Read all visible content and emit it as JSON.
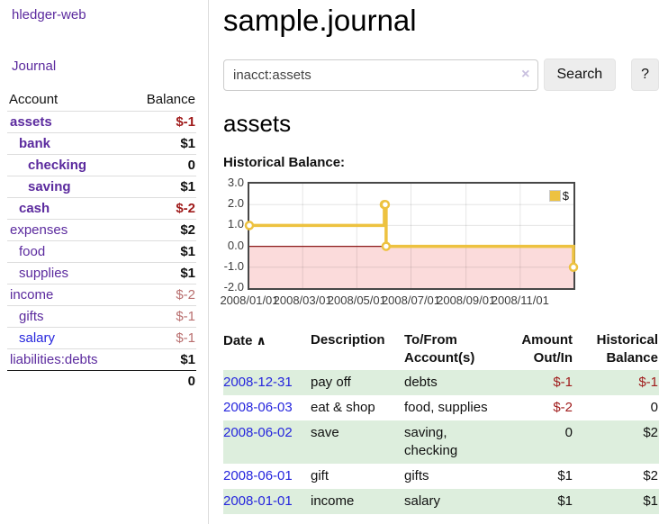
{
  "colors": {
    "link_purple": "#5b2a9e",
    "link_blue": "#2626dd",
    "negative": "#a01c1c",
    "negative_weak": "#b96f6f",
    "row_stripe_green": "#ddeedd",
    "chart_line_yellow": "#edc240",
    "chart_negative_fill": "#fbdbdb",
    "chart_zero_line": "#8b1a1a"
  },
  "sidebar": {
    "app_title": "hledger-web",
    "journal_link": "Journal",
    "accounts": {
      "account_header": "Account",
      "balance_header": "Balance",
      "rows": [
        {
          "name": "assets",
          "level": 0,
          "emph": true,
          "balance": "$-1",
          "negative": true,
          "weak": false
        },
        {
          "name": "bank",
          "level": 1,
          "emph": true,
          "balance": "$1",
          "negative": false,
          "weak": false
        },
        {
          "name": "checking",
          "level": 2,
          "emph": true,
          "balance": "0",
          "negative": false,
          "weak": false
        },
        {
          "name": "saving",
          "level": 2,
          "emph": true,
          "balance": "$1",
          "negative": false,
          "weak": false
        },
        {
          "name": "cash",
          "level": 1,
          "emph": true,
          "balance": "$-2",
          "negative": true,
          "weak": false
        },
        {
          "name": "expenses",
          "level": 0,
          "emph": false,
          "balance": "$2",
          "negative": false,
          "weak": false
        },
        {
          "name": "food",
          "level": 1,
          "emph": false,
          "balance": "$1",
          "negative": false,
          "weak": false
        },
        {
          "name": "supplies",
          "level": 1,
          "emph": false,
          "balance": "$1",
          "negative": false,
          "weak": false
        },
        {
          "name": "income",
          "level": 0,
          "emph": false,
          "balance": "$-2",
          "negative": true,
          "weak": true
        },
        {
          "name": "gifts",
          "level": 1,
          "emph": false,
          "balance": "$-1",
          "negative": true,
          "weak": true
        },
        {
          "name": "salary",
          "level": 1,
          "emph": false,
          "balance": "$-1",
          "negative": true,
          "weak": true,
          "unvisited": true
        },
        {
          "name": "liabilities:debts",
          "level": 0,
          "emph": false,
          "balance": "$1",
          "negative": false,
          "weak": false
        }
      ],
      "total": "0"
    }
  },
  "main": {
    "title": "sample.journal",
    "search": {
      "value": "inacct:assets",
      "clear_icon": "×",
      "search_button": "Search",
      "help_button": "?"
    },
    "account_heading": "assets",
    "chart_title": "Historical Balance:"
  },
  "chart_data": {
    "type": "line",
    "step": true,
    "title": "Historical Balance",
    "xlabel": "",
    "ylabel": "",
    "series": [
      {
        "name": "$",
        "color": "#edc240",
        "points": [
          [
            "2008-01-01",
            1
          ],
          [
            "2008-06-01",
            2
          ],
          [
            "2008-06-02",
            2
          ],
          [
            "2008-06-03",
            0
          ],
          [
            "2008-12-31",
            -1
          ]
        ]
      }
    ],
    "x_ticks": [
      "2008/01/01",
      "2008/03/01",
      "2008/05/01",
      "2008/07/01",
      "2008/09/01",
      "2008/11/01"
    ],
    "y_ticks": [
      "3.0",
      "2.0",
      "1.0",
      "0.0",
      "-1.0",
      "-2.0"
    ],
    "xlim": [
      "2008-01-01",
      "2008-12-31"
    ],
    "ylim": [
      -2,
      3
    ],
    "grid": true,
    "legend_position": "top-right",
    "negative_region_fill": "#fbdbdb"
  },
  "register_table": {
    "headers": {
      "date": "Date",
      "sort_icon": "∧",
      "description": "Description",
      "accounts": "To/From Account(s)",
      "amount": "Amount Out/In",
      "balance": "Historical Balance"
    },
    "rows": [
      {
        "date": "2008-12-31",
        "description": "pay off",
        "accounts": "debts",
        "amount": "$-1",
        "amount_negative": true,
        "balance": "$-1",
        "balance_negative": true
      },
      {
        "date": "2008-06-03",
        "description": "eat & shop",
        "accounts": "food, supplies",
        "amount": "$-2",
        "amount_negative": true,
        "balance": "0",
        "balance_negative": false
      },
      {
        "date": "2008-06-02",
        "description": "save",
        "accounts": "saving, checking",
        "amount": "0",
        "amount_negative": false,
        "balance": "$2",
        "balance_negative": false
      },
      {
        "date": "2008-06-01",
        "description": "gift",
        "accounts": "gifts",
        "amount": "$1",
        "amount_negative": false,
        "balance": "$2",
        "balance_negative": false
      },
      {
        "date": "2008-01-01",
        "description": "income",
        "accounts": "salary",
        "amount": "$1",
        "amount_negative": false,
        "balance": "$1",
        "balance_negative": false
      }
    ]
  }
}
